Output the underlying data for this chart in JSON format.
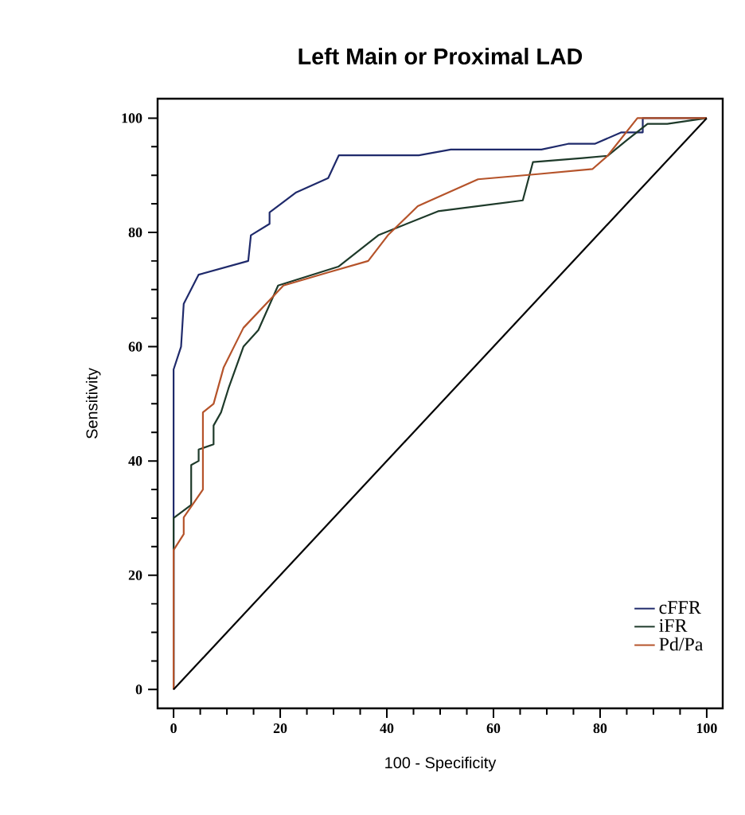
{
  "chart_data": {
    "type": "line",
    "title": "Left Main or Proximal LAD",
    "xlabel": "100 - Specificity",
    "ylabel": "Sensitivity",
    "xlim": [
      -3,
      103
    ],
    "ylim": [
      -3.3,
      103.4
    ],
    "xticks": [
      0,
      20,
      40,
      60,
      80,
      100
    ],
    "yticks": [
      0,
      20,
      40,
      60,
      80,
      100
    ],
    "legend": "bottom right",
    "marker": "none",
    "line_style": "solid",
    "series": [
      {
        "name": "cFFR",
        "color": "#1f2a6b",
        "x": [
          0,
          0,
          1.4,
          1.9,
          4.7,
          14,
          14.5,
          18,
          18,
          23,
          29,
          31,
          46,
          52,
          69,
          74,
          79,
          84,
          88,
          88,
          100
        ],
        "values": [
          0,
          56,
          60,
          67.5,
          72.6,
          75,
          79.5,
          81.5,
          83.5,
          87,
          89.5,
          93.5,
          93.5,
          94.5,
          94.5,
          95.5,
          95.5,
          97.5,
          97.5,
          100,
          100
        ]
      },
      {
        "name": "iFR",
        "color": "#1e3a2a",
        "x": [
          0,
          0,
          3.3,
          3.3,
          4.7,
          4.7,
          7.5,
          7.5,
          8.9,
          10.3,
          13.1,
          15.9,
          19.6,
          30.9,
          38.4,
          49.6,
          65.5,
          67.4,
          76.7,
          81.4,
          85.1,
          88.9,
          92.6,
          100
        ],
        "values": [
          0,
          30,
          32.3,
          39.3,
          40,
          42,
          42.9,
          46.2,
          48.5,
          52.7,
          60,
          62.9,
          70.7,
          74,
          79.5,
          83.7,
          85.6,
          92.3,
          93,
          93.4,
          96.2,
          99,
          99,
          100
        ]
      },
      {
        "name": "Pd/Pa",
        "color": "#b5532a",
        "x": [
          0,
          0,
          1.9,
          1.9,
          5.5,
          5.5,
          7.5,
          9.4,
          13.1,
          20.6,
          29,
          36.5,
          40.2,
          45.8,
          57.1,
          68.3,
          78.6,
          81.4,
          87,
          100
        ],
        "values": [
          0,
          24.4,
          27.2,
          30.1,
          35,
          48.5,
          50,
          56.4,
          63.3,
          70.7,
          73,
          75,
          79.5,
          84.6,
          89.3,
          90.2,
          91.1,
          93.4,
          100,
          100
        ]
      },
      {
        "type": "line",
        "color": "#000000",
        "x": [
          0,
          100
        ],
        "values": [
          0,
          100
        ]
      }
    ]
  }
}
